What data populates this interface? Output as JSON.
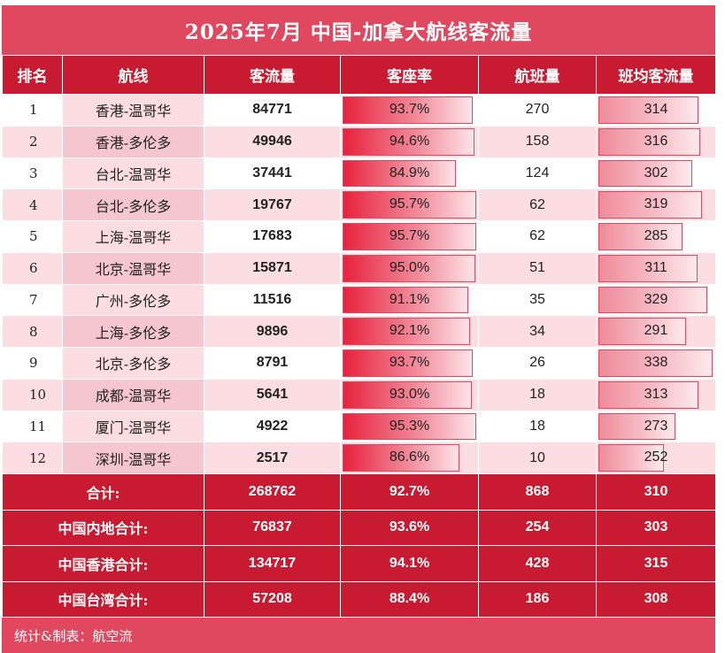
{
  "title": "2025年7月 中国-加拿大航线客流量",
  "headers": [
    "排名",
    "航线",
    "客流量",
    "客座率",
    "航班量",
    "班均客流量"
  ],
  "rows": [
    {
      "rank": "1",
      "route": "香港-温哥华",
      "pax": "84771",
      "load": "93.7%",
      "load_value": 93.7,
      "flights": "270",
      "avg": "314",
      "avg_value": 314
    },
    {
      "rank": "2",
      "route": "香港-多伦多",
      "pax": "49946",
      "load": "94.6%",
      "load_value": 94.6,
      "flights": "158",
      "avg": "316",
      "avg_value": 316
    },
    {
      "rank": "3",
      "route": "台北-温哥华",
      "pax": "37441",
      "load": "84.9%",
      "load_value": 84.9,
      "flights": "124",
      "avg": "302",
      "avg_value": 302
    },
    {
      "rank": "4",
      "route": "台北-多伦多",
      "pax": "19767",
      "load": "95.7%",
      "load_value": 95.7,
      "flights": "62",
      "avg": "319",
      "avg_value": 319
    },
    {
      "rank": "5",
      "route": "上海-温哥华",
      "pax": "17683",
      "load": "95.7%",
      "load_value": 95.7,
      "flights": "62",
      "avg": "285",
      "avg_value": 285
    },
    {
      "rank": "6",
      "route": "北京-温哥华",
      "pax": "15871",
      "load": "95.0%",
      "load_value": 95.0,
      "flights": "51",
      "avg": "311",
      "avg_value": 311
    },
    {
      "rank": "7",
      "route": "广州-多伦多",
      "pax": "11516",
      "load": "91.1%",
      "load_value": 91.1,
      "flights": "35",
      "avg": "329",
      "avg_value": 329
    },
    {
      "rank": "8",
      "route": "上海-多伦多",
      "pax": "9896",
      "load": "92.1%",
      "load_value": 92.1,
      "flights": "34",
      "avg": "291",
      "avg_value": 291
    },
    {
      "rank": "9",
      "route": "北京-多伦多",
      "pax": "8791",
      "load": "93.7%",
      "load_value": 93.7,
      "flights": "26",
      "avg": "338",
      "avg_value": 338
    },
    {
      "rank": "10",
      "route": "成都-温哥华",
      "pax": "5641",
      "load": "93.0%",
      "load_value": 93.0,
      "flights": "18",
      "avg": "313",
      "avg_value": 313
    },
    {
      "rank": "11",
      "route": "厦门-温哥华",
      "pax": "4922",
      "load": "95.3%",
      "load_value": 95.3,
      "flights": "18",
      "avg": "273",
      "avg_value": 273
    },
    {
      "rank": "12",
      "route": "深圳-温哥华",
      "pax": "2517",
      "load": "86.6%",
      "load_value": 86.6,
      "flights": "10",
      "avg": "252",
      "avg_value": 252
    }
  ],
  "summary": [
    {
      "label": "合计:",
      "pax": "268762",
      "load": "92.7%",
      "flights": "868",
      "avg": "310"
    },
    {
      "label": "中国内地合计:",
      "pax": "76837",
      "load": "93.6%",
      "flights": "254",
      "avg": "303"
    },
    {
      "label": "中国香港合计:",
      "pax": "134717",
      "load": "94.1%",
      "flights": "428",
      "avg": "315"
    },
    {
      "label": "中国台湾合计:",
      "pax": "57208",
      "load": "88.4%",
      "flights": "186",
      "avg": "308"
    }
  ],
  "footer": "统计&制表：航空流",
  "colors": {
    "header_red": "#c81a30",
    "title_red": "#e0485f",
    "row_pink": "#fbdde2",
    "route_pink": "#f5c6cf"
  }
}
